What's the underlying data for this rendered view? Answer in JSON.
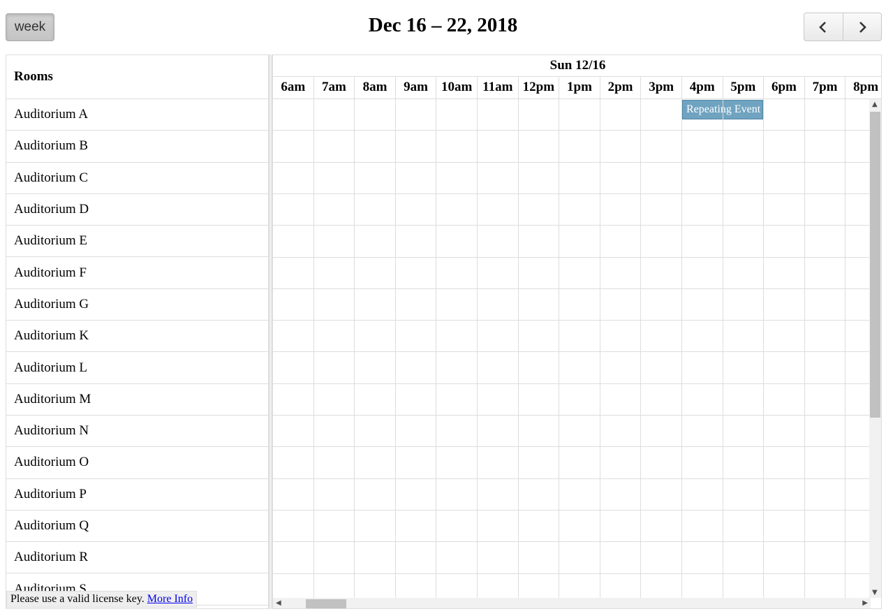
{
  "toolbar": {
    "view_button": "week",
    "title": "Dec 16 – 22, 2018",
    "prev_icon": "chevron-left-icon",
    "next_icon": "chevron-right-icon"
  },
  "resources": {
    "header": "Rooms",
    "rooms": [
      "Auditorium A",
      "Auditorium B",
      "Auditorium C",
      "Auditorium D",
      "Auditorium E",
      "Auditorium F",
      "Auditorium G",
      "Auditorium K",
      "Auditorium L",
      "Auditorium M",
      "Auditorium N",
      "Auditorium O",
      "Auditorium P",
      "Auditorium Q",
      "Auditorium R",
      "Auditorium S"
    ]
  },
  "timeline": {
    "day": "Sun 12/16",
    "slots": [
      "6am",
      "7am",
      "8am",
      "9am",
      "10am",
      "11am",
      "12pm",
      "1pm",
      "2pm",
      "3pm",
      "4pm",
      "5pm",
      "6pm",
      "7pm",
      "8pm"
    ]
  },
  "event": {
    "title": "Repeating Event",
    "room": "Auditorium A",
    "start": "4pm",
    "end": "6pm",
    "color": "#6fa3c0"
  },
  "license": {
    "text": "Please use a valid license key.",
    "link": "More Info"
  }
}
